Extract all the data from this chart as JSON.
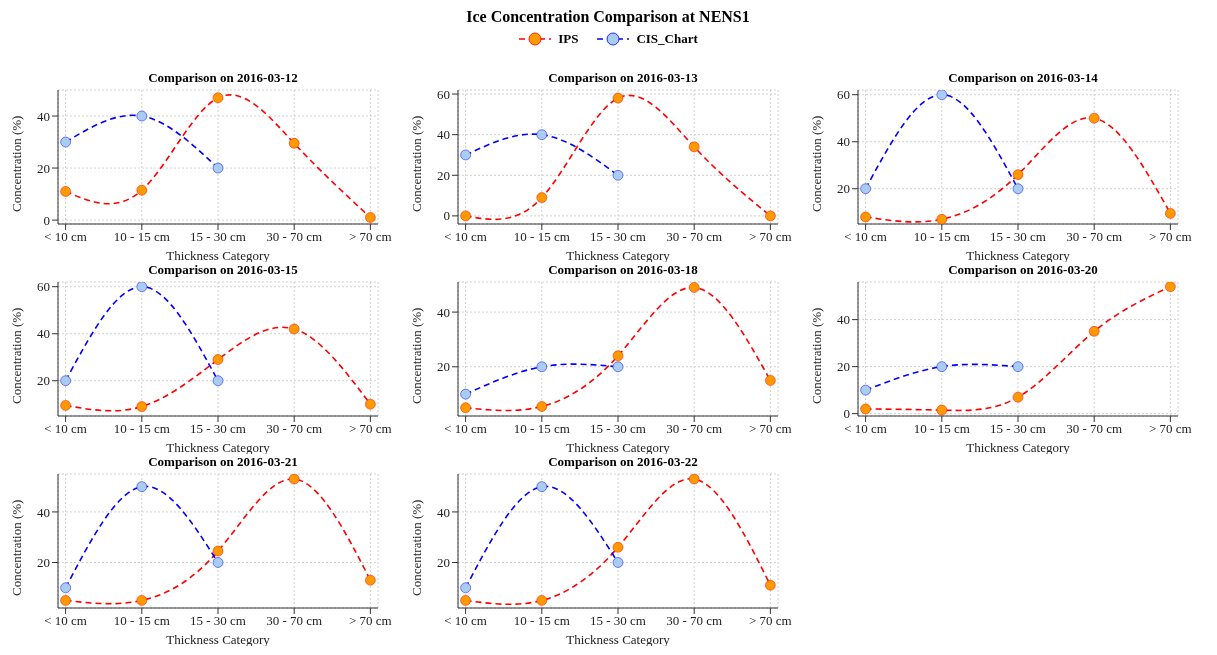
{
  "chart_data": [
    {
      "type": "line",
      "title": "Comparison on 2016-03-12",
      "annotations": [
        "Ice Concentration Comparison at NENS1"
      ],
      "legend": "top",
      "xlabel": "Thickness Category",
      "ylabel": "Concentration (%)",
      "categories": [
        "< 10 cm",
        "10 - 15 cm",
        "15 - 30 cm",
        "30 - 70 cm",
        "> 70 cm"
      ],
      "ylim": [
        -1.5,
        50
      ],
      "yticks": [
        0,
        20,
        40
      ],
      "grid": true,
      "marker": "circle",
      "line_style": "dashed",
      "series": [
        {
          "name": "IPS",
          "color": "#ff0000",
          "colors": [
            "#ff9900",
            "#ff9900",
            "#ff9900",
            "#ff9900",
            "#ff9900"
          ],
          "values": [
            11,
            11.5,
            47,
            29.5,
            1
          ]
        },
        {
          "name": "CIS_Chart",
          "color": "#0000ff",
          "colors": [
            "#a8cdf0",
            "#a8cdf0",
            "#a8cdf0",
            null,
            null
          ],
          "values": [
            30,
            40,
            20,
            null,
            null
          ]
        }
      ]
    },
    {
      "type": "line",
      "title": "Comparison on 2016-03-13",
      "xlabel": "Thickness Category",
      "ylabel": "Concentration (%)",
      "categories": [
        "< 10 cm",
        "10 - 15 cm",
        "15 - 30 cm",
        "30 - 70 cm",
        "> 70 cm"
      ],
      "ylim": [
        -4,
        62
      ],
      "yticks": [
        0,
        20,
        40,
        60
      ],
      "grid": true,
      "marker": "circle",
      "line_style": "dashed",
      "series": [
        {
          "color": "#ff0000",
          "colors": [
            "#ff9900",
            "#ff9900",
            "#ff9900",
            "#ff9900",
            "#ff9900"
          ],
          "values": [
            0,
            9,
            58,
            34,
            0
          ]
        },
        {
          "color": "#0000ff",
          "colors": [
            "#a8cdf0",
            "#a8cdf0",
            "#a8cdf0",
            null,
            null
          ],
          "values": [
            30,
            40,
            20,
            null,
            null
          ]
        }
      ]
    },
    {
      "type": "line",
      "title": "Comparison on 2016-03-14",
      "xlabel": "Thickness Category",
      "ylabel": "Concentration (%)",
      "categories": [
        "< 10 cm",
        "10 - 15 cm",
        "15 - 30 cm",
        "30 - 70 cm",
        "> 70 cm"
      ],
      "ylim": [
        5,
        62
      ],
      "yticks": [
        20,
        40,
        60
      ],
      "grid": true,
      "marker": "circle",
      "line_style": "dashed",
      "series": [
        {
          "color": "#ff0000",
          "colors": [
            "#ff9900",
            "#ff9900",
            "#ff9900",
            "#ff9900",
            "#ff9900"
          ],
          "values": [
            8,
            7,
            26,
            50,
            9.5
          ]
        },
        {
          "color": "#0000ff",
          "colors": [
            "#a8cdf0",
            "#a8cdf0",
            "#a8cdf0",
            null,
            null
          ],
          "values": [
            20,
            60,
            20,
            null,
            null
          ]
        }
      ]
    },
    {
      "type": "line",
      "title": "Comparison on 2016-03-15",
      "xlabel": "Thickness Category",
      "ylabel": "Concentration (%)",
      "categories": [
        "< 10 cm",
        "10 - 15 cm",
        "15 - 30 cm",
        "30 - 70 cm",
        "> 70 cm"
      ],
      "ylim": [
        5,
        62
      ],
      "yticks": [
        20,
        40,
        60
      ],
      "grid": true,
      "marker": "circle",
      "line_style": "dashed",
      "series": [
        {
          "color": "#ff0000",
          "colors": [
            "#ff9900",
            "#ff9900",
            "#ff9900",
            "#ff9900",
            "#ff9900"
          ],
          "values": [
            9.5,
            9,
            29,
            42,
            10
          ]
        },
        {
          "color": "#0000ff",
          "colors": [
            "#a8cdf0",
            "#a8cdf0",
            "#a8cdf0",
            null,
            null
          ],
          "values": [
            20,
            60,
            20,
            null,
            null
          ]
        }
      ]
    },
    {
      "type": "line",
      "title": "Comparison on 2016-03-18",
      "xlabel": "Thickness Category",
      "ylabel": "Concentration (%)",
      "categories": [
        "< 10 cm",
        "10 - 15 cm",
        "15 - 30 cm",
        "30 - 70 cm",
        "> 70 cm"
      ],
      "ylim": [
        2,
        51
      ],
      "yticks": [
        20,
        40
      ],
      "grid": true,
      "marker": "circle",
      "line_style": "dashed",
      "series": [
        {
          "color": "#ff0000",
          "colors": [
            "#ff9900",
            "#ff9900",
            "#ff9900",
            "#ff9900",
            "#ff9900"
          ],
          "values": [
            5,
            5.5,
            24,
            49,
            15
          ]
        },
        {
          "color": "#0000ff",
          "colors": [
            "#a8cdf0",
            "#a8cdf0",
            "#a8cdf0",
            null,
            null
          ],
          "values": [
            10,
            20,
            20,
            null,
            null
          ]
        }
      ]
    },
    {
      "type": "line",
      "title": "Comparison on 2016-03-20",
      "xlabel": "Thickness Category",
      "ylabel": "Concentration (%)",
      "categories": [
        "< 10 cm",
        "10 - 15 cm",
        "15 - 30 cm",
        "30 - 70 cm",
        "> 70 cm"
      ],
      "ylim": [
        -1,
        56
      ],
      "yticks": [
        0,
        20,
        40
      ],
      "grid": true,
      "marker": "circle",
      "line_style": "dashed",
      "series": [
        {
          "color": "#ff0000",
          "colors": [
            "#ff9900",
            "#ff9900",
            "#ff9900",
            "#ff9900",
            "#ff9900"
          ],
          "values": [
            2,
            1.5,
            7,
            35,
            54
          ]
        },
        {
          "color": "#0000ff",
          "colors": [
            "#a8cdf0",
            "#a8cdf0",
            "#a8cdf0",
            null,
            null
          ],
          "values": [
            10,
            20,
            20,
            null,
            null
          ]
        }
      ]
    },
    {
      "type": "line",
      "title": "Comparison on 2016-03-21",
      "xlabel": "Thickness Category",
      "ylabel": "Concentration (%)",
      "categories": [
        "< 10 cm",
        "10 - 15 cm",
        "15 - 30 cm",
        "30 - 70 cm",
        "> 70 cm"
      ],
      "ylim": [
        2,
        55
      ],
      "yticks": [
        20,
        40
      ],
      "grid": true,
      "marker": "circle",
      "line_style": "dashed",
      "series": [
        {
          "color": "#ff0000",
          "colors": [
            "#ff9900",
            "#ff9900",
            "#ff9900",
            "#ff9900",
            "#ff9900"
          ],
          "values": [
            5,
            5,
            24.5,
            53,
            13
          ]
        },
        {
          "color": "#0000ff",
          "colors": [
            "#a8cdf0",
            "#a8cdf0",
            "#a8cdf0",
            null,
            null
          ],
          "values": [
            10,
            50,
            20,
            null,
            null
          ]
        }
      ]
    },
    {
      "type": "line",
      "title": "Comparison on 2016-03-22",
      "xlabel": "Thickness Category",
      "ylabel": "Concentration (%)",
      "categories": [
        "< 10 cm",
        "10 - 15 cm",
        "15 - 30 cm",
        "30 - 70 cm",
        "> 70 cm"
      ],
      "ylim": [
        2,
        55
      ],
      "yticks": [
        20,
        40
      ],
      "grid": true,
      "marker": "circle",
      "line_style": "dashed",
      "series": [
        {
          "color": "#ff0000",
          "colors": [
            "#ff9900",
            "#ff9900",
            "#ff9900",
            "#ff9900",
            "#ff9900"
          ],
          "values": [
            5,
            5,
            26,
            53,
            11
          ]
        },
        {
          "color": "#0000ff",
          "colors": [
            "#a8cdf0",
            "#a8cdf0",
            "#a8cdf0",
            null,
            null
          ],
          "values": [
            10,
            50,
            20,
            null,
            null
          ]
        }
      ]
    }
  ]
}
